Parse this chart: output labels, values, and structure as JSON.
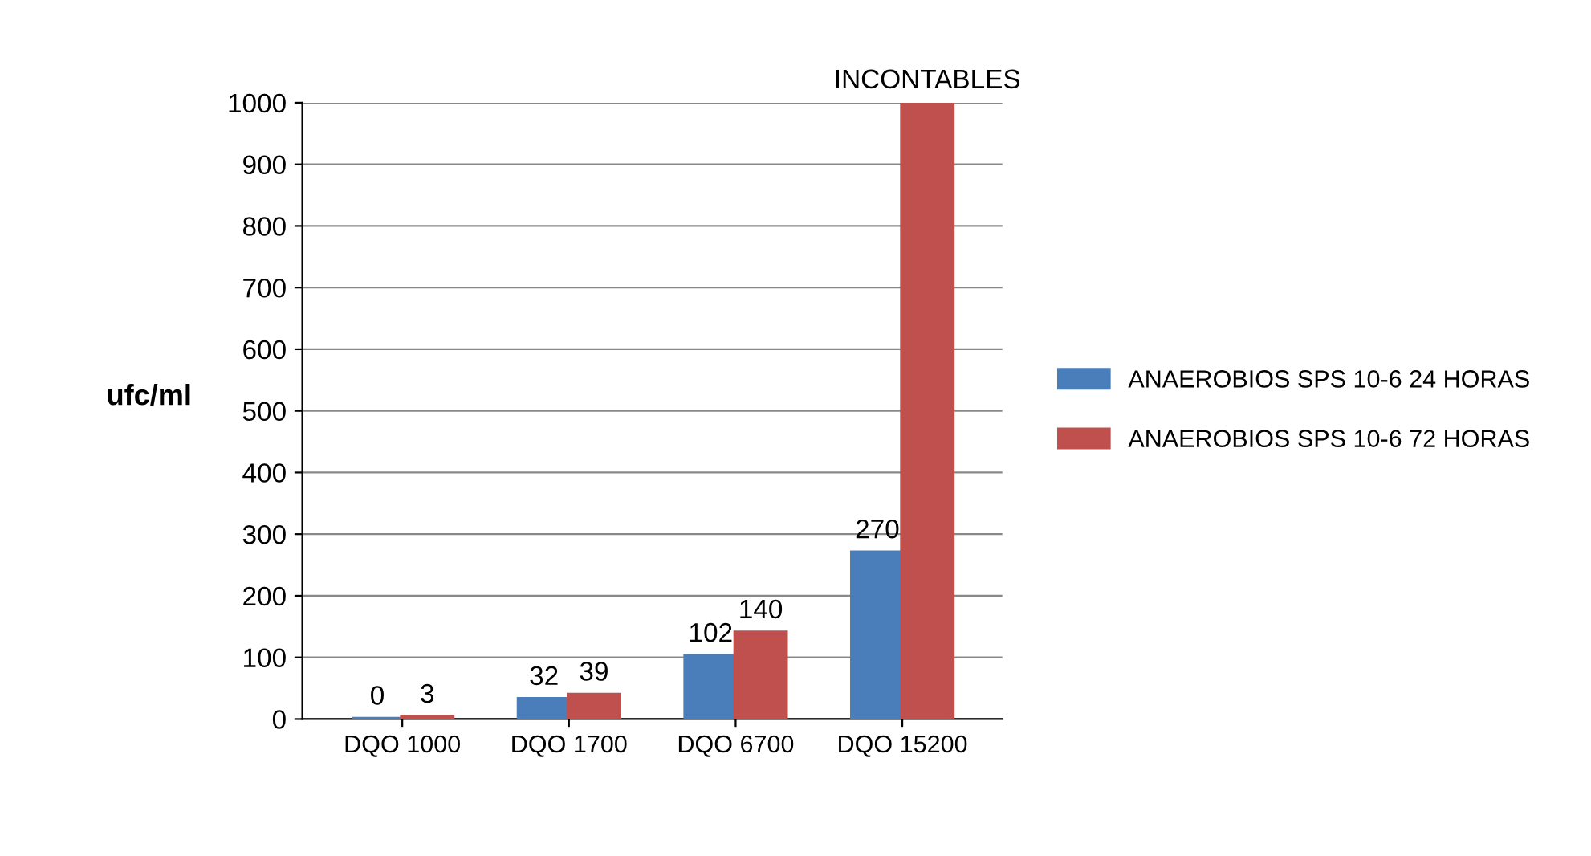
{
  "chart_data": {
    "type": "bar",
    "ylabel": "ufc/ml",
    "categories": [
      "DQO 1000",
      "DQO 1700",
      "DQO 6700",
      "DQO 15200"
    ],
    "series": [
      {
        "name": "ANAEROBIOS SPS 10-6 24 HORAS",
        "color": "#4a7ebb",
        "values": [
          0,
          32,
          102,
          270
        ],
        "value_labels": [
          "0",
          "32",
          "102",
          "270"
        ]
      },
      {
        "name": "ANAEROBIOS SPS 10-6 72 HORAS",
        "color": "#c0504d",
        "values": [
          3,
          39,
          140,
          1000
        ],
        "value_labels": [
          "3",
          "39",
          "140",
          "INCONTABLES"
        ]
      }
    ],
    "ylim": [
      0,
      1000
    ],
    "yticks": [
      0,
      100,
      200,
      300,
      400,
      500,
      600,
      700,
      800,
      900,
      1000
    ],
    "grid": "y",
    "legend": "right"
  }
}
